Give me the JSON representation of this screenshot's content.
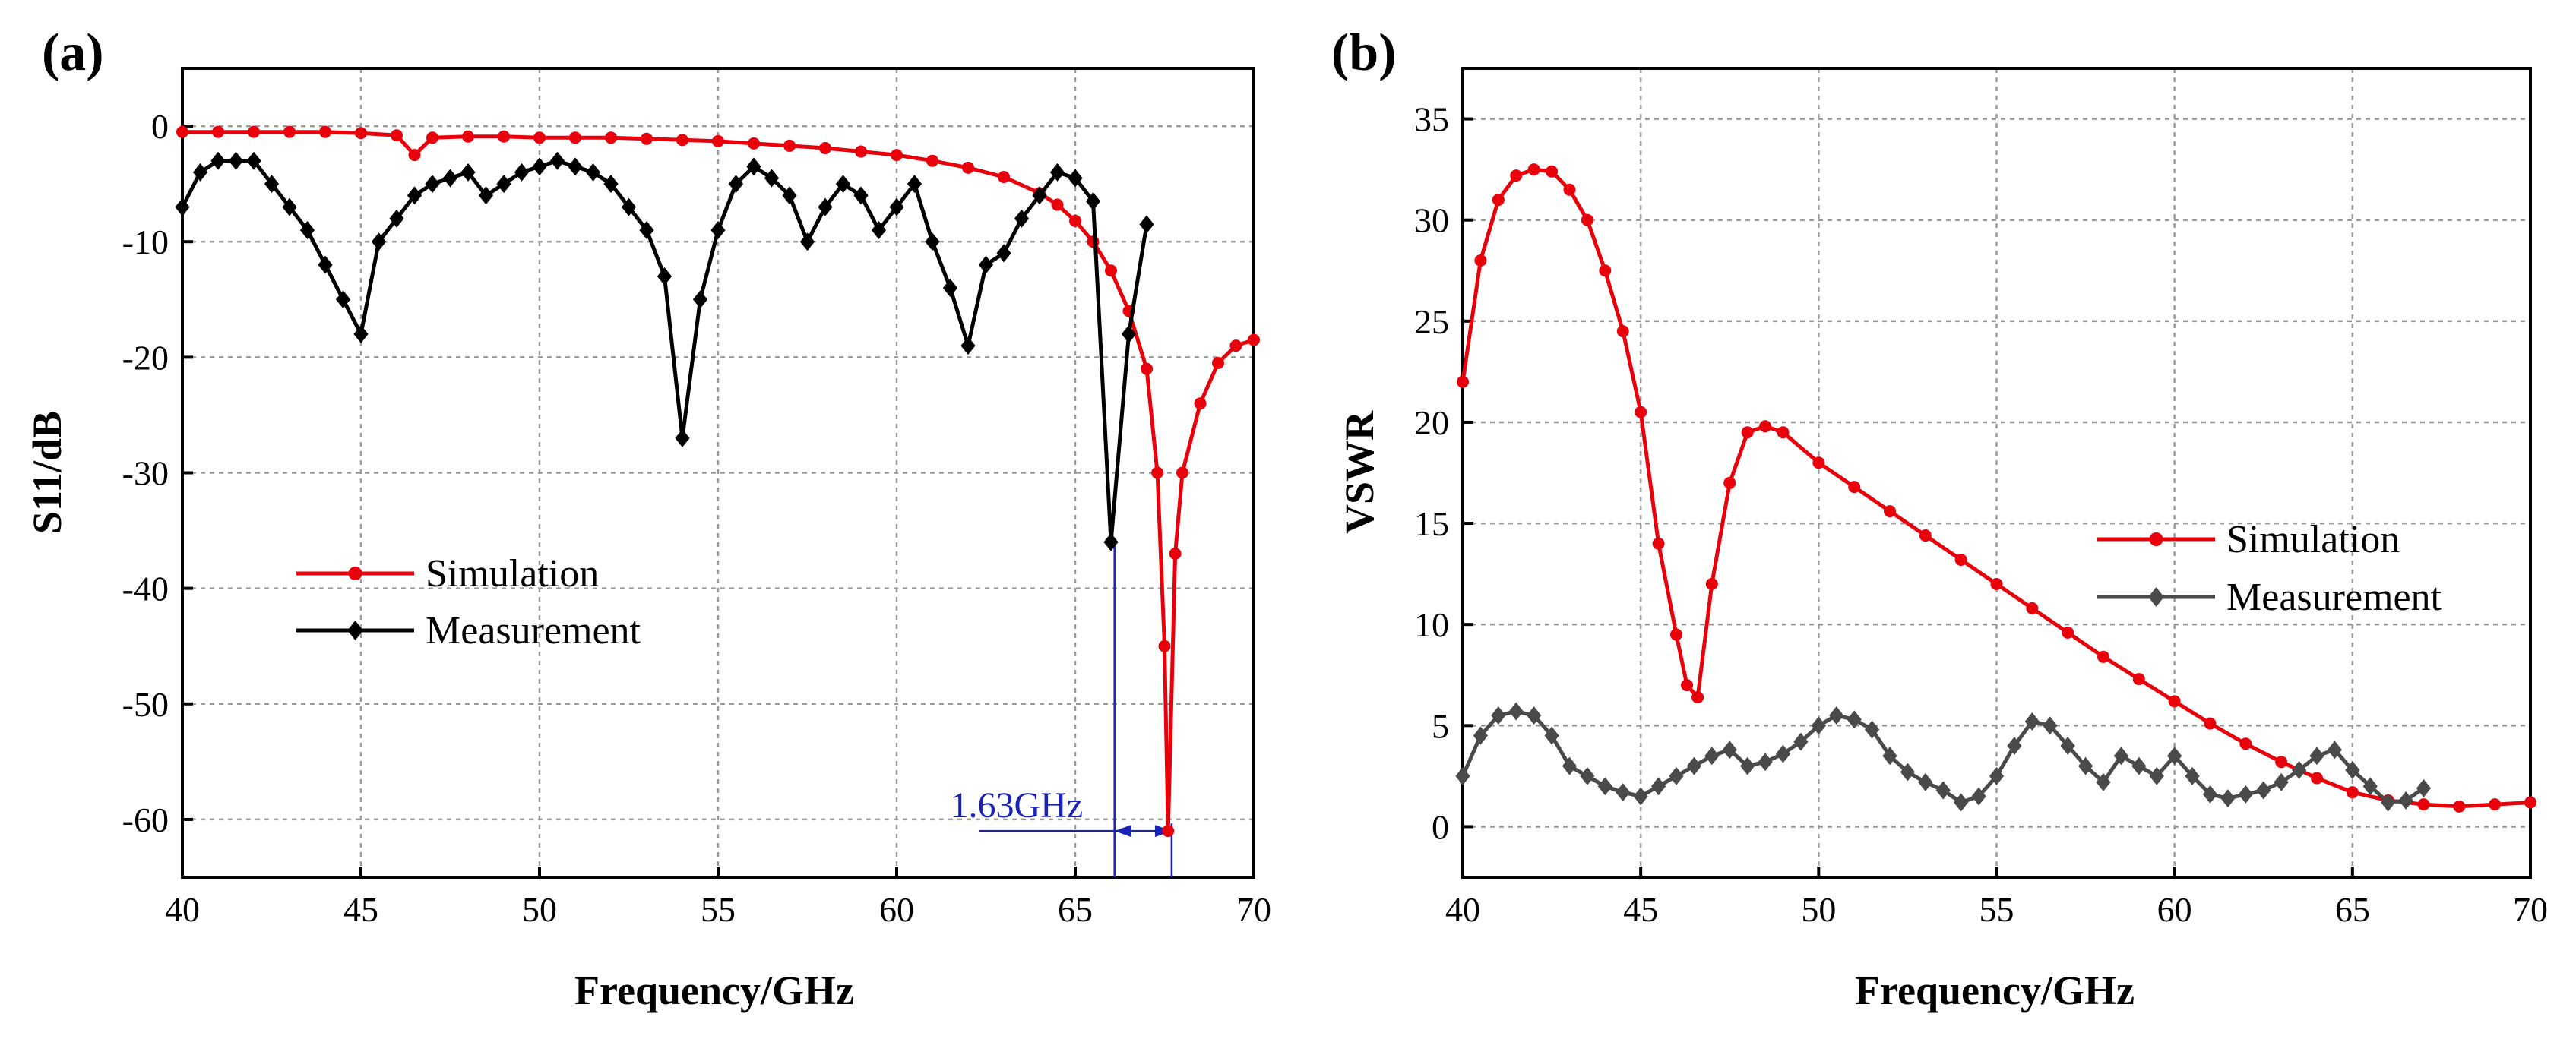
{
  "chart_data": [
    {
      "type": "line",
      "panel_label": "(a)",
      "title": "",
      "xlabel": "Frequency/GHz",
      "ylabel": "S11/dB",
      "xlim": [
        40,
        70
      ],
      "ylim": [
        -65,
        5
      ],
      "xticks": [
        40,
        45,
        50,
        55,
        60,
        65,
        70
      ],
      "yticks": [
        0,
        -10,
        -20,
        -30,
        -40,
        -50,
        -60
      ],
      "grid": true,
      "legend_position": "center-left",
      "series": [
        {
          "name": "Simulation",
          "color": "#e8000b",
          "marker": "circle",
          "x": [
            40,
            41,
            42,
            43,
            44,
            45,
            46,
            46.5,
            47,
            48,
            49,
            50,
            51,
            52,
            53,
            54,
            55,
            56,
            57,
            58,
            59,
            60,
            61,
            62,
            63,
            64,
            64.5,
            65,
            65.5,
            66,
            66.5,
            67,
            67.3,
            67.5,
            67.6,
            67.8,
            68,
            68.5,
            69,
            69.5,
            70
          ],
          "values": [
            -0.5,
            -0.5,
            -0.5,
            -0.5,
            -0.5,
            -0.6,
            -0.8,
            -2.5,
            -1,
            -0.9,
            -0.9,
            -1,
            -1,
            -1,
            -1.1,
            -1.2,
            -1.3,
            -1.5,
            -1.7,
            -1.9,
            -2.2,
            -2.5,
            -3,
            -3.6,
            -4.4,
            -5.8,
            -6.8,
            -8.2,
            -10,
            -12.5,
            -16,
            -21,
            -30,
            -45,
            -61,
            -37,
            -30,
            -24,
            -20.5,
            -19,
            -18.5
          ]
        },
        {
          "name": "Measurement",
          "color": "#000000",
          "marker": "diamond",
          "x": [
            40,
            40.5,
            41,
            41.5,
            42,
            42.5,
            43,
            43.5,
            44,
            44.5,
            45,
            45.5,
            46,
            46.5,
            47,
            47.5,
            48,
            48.5,
            49,
            49.5,
            50,
            50.5,
            51,
            51.5,
            52,
            52.5,
            53,
            53.5,
            54,
            54.5,
            55,
            55.5,
            56,
            56.5,
            57,
            57.5,
            58,
            58.5,
            59,
            59.5,
            60,
            60.5,
            61,
            61.5,
            62,
            62.5,
            63,
            63.5,
            64,
            64.5,
            65,
            65.5,
            66,
            66.5,
            67
          ],
          "values": [
            -7,
            -4,
            -3,
            -3,
            -3,
            -5,
            -7,
            -9,
            -12,
            -15,
            -18,
            -10,
            -8,
            -6,
            -5,
            -4.5,
            -4,
            -6,
            -5,
            -4,
            -3.5,
            -3,
            -3.5,
            -4,
            -5,
            -7,
            -9,
            -13,
            -27,
            -15,
            -9,
            -5,
            -3.5,
            -4.5,
            -6,
            -10,
            -7,
            -5,
            -6,
            -9,
            -7,
            -5,
            -10,
            -14,
            -19,
            -12,
            -11,
            -8,
            -6,
            -4,
            -4.5,
            -6.5,
            -36,
            -18,
            -8.5
          ]
        }
      ],
      "annotation": {
        "text": "1.63GHz",
        "color": "#1a22b8",
        "x_start": 66.1,
        "x_end": 67.7,
        "y": -61
      }
    },
    {
      "type": "line",
      "panel_label": "(b)",
      "title": "",
      "xlabel": "Frequency/GHz",
      "ylabel": "VSWR",
      "xlim": [
        40,
        70
      ],
      "ylim": [
        -2.5,
        37.5
      ],
      "xticks": [
        40,
        45,
        50,
        55,
        60,
        65,
        70
      ],
      "yticks": [
        0,
        5,
        10,
        15,
        20,
        25,
        30,
        35
      ],
      "grid": true,
      "legend_position": "center-right",
      "series": [
        {
          "name": "Simulation",
          "color": "#e8000b",
          "marker": "circle",
          "x": [
            40,
            40.5,
            41,
            41.5,
            42,
            42.5,
            43,
            43.5,
            44,
            44.5,
            45,
            45.5,
            46,
            46.3,
            46.6,
            47,
            47.5,
            48,
            48.5,
            49,
            50,
            51,
            52,
            53,
            54,
            55,
            56,
            57,
            58,
            59,
            60,
            61,
            62,
            63,
            64,
            65,
            66,
            67,
            68,
            69,
            70
          ],
          "values": [
            22,
            28,
            31,
            32.2,
            32.5,
            32.4,
            31.5,
            30,
            27.5,
            24.5,
            20.5,
            14,
            9.5,
            7,
            6.4,
            12,
            17,
            19.5,
            19.8,
            19.5,
            18,
            16.8,
            15.6,
            14.4,
            13.2,
            12,
            10.8,
            9.6,
            8.4,
            7.3,
            6.2,
            5.1,
            4.1,
            3.2,
            2.4,
            1.7,
            1.3,
            1.1,
            1,
            1.1,
            1.2
          ]
        },
        {
          "name": "Measurement",
          "color": "#4a4a4a",
          "marker": "diamond",
          "x": [
            40,
            40.5,
            41,
            41.5,
            42,
            42.5,
            43,
            43.5,
            44,
            44.5,
            45,
            45.5,
            46,
            46.5,
            47,
            47.5,
            48,
            48.5,
            49,
            49.5,
            50,
            50.5,
            51,
            51.5,
            52,
            52.5,
            53,
            53.5,
            54,
            54.5,
            55,
            55.5,
            56,
            56.5,
            57,
            57.5,
            58,
            58.5,
            59,
            59.5,
            60,
            60.5,
            61,
            61.5,
            62,
            62.5,
            63,
            63.5,
            64,
            64.5,
            65,
            65.5,
            66,
            66.5,
            67
          ],
          "values": [
            2.5,
            4.5,
            5.5,
            5.7,
            5.5,
            4.5,
            3,
            2.5,
            2,
            1.7,
            1.5,
            2,
            2.5,
            3,
            3.5,
            3.8,
            3,
            3.2,
            3.6,
            4.2,
            5,
            5.5,
            5.3,
            4.8,
            3.5,
            2.7,
            2.2,
            1.8,
            1.2,
            1.5,
            2.5,
            4,
            5.2,
            5,
            4,
            3,
            2.2,
            3.5,
            3,
            2.5,
            3.5,
            2.5,
            1.6,
            1.4,
            1.6,
            1.8,
            2.2,
            2.8,
            3.5,
            3.8,
            2.8,
            2,
            1.2,
            1.3,
            1.9
          ]
        }
      ]
    }
  ]
}
